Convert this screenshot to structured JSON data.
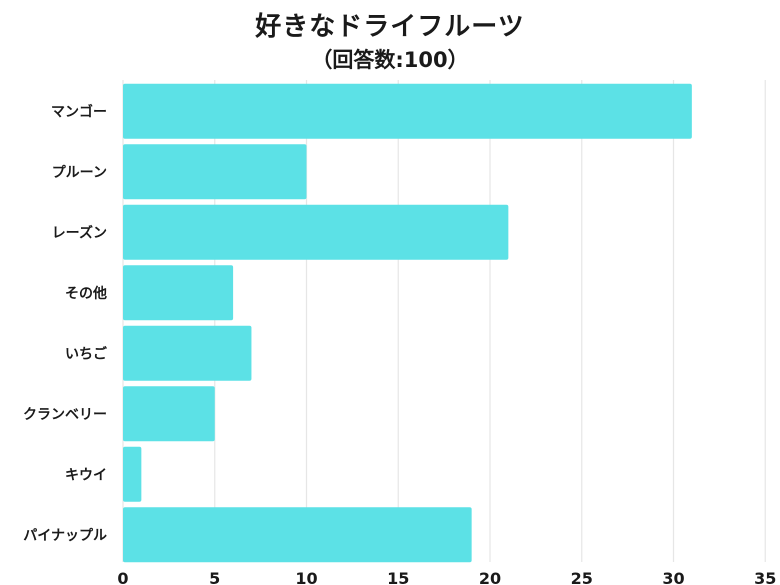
{
  "chart_data": {
    "type": "bar",
    "orientation": "horizontal",
    "title": "好きなドライフルーツ",
    "subtitle": "（回答数:100）",
    "categories": [
      "マンゴー",
      "プルーン",
      "レーズン",
      "その他",
      "いちご",
      "クランベリー",
      "キウイ",
      "パイナップル"
    ],
    "values": [
      31,
      10,
      21,
      6,
      7,
      5,
      1,
      19
    ],
    "xlim": [
      0,
      35
    ],
    "xticks": [
      0,
      5,
      10,
      15,
      20,
      25,
      30,
      35
    ],
    "grid": true,
    "bar_color": "#5ce1e6"
  }
}
